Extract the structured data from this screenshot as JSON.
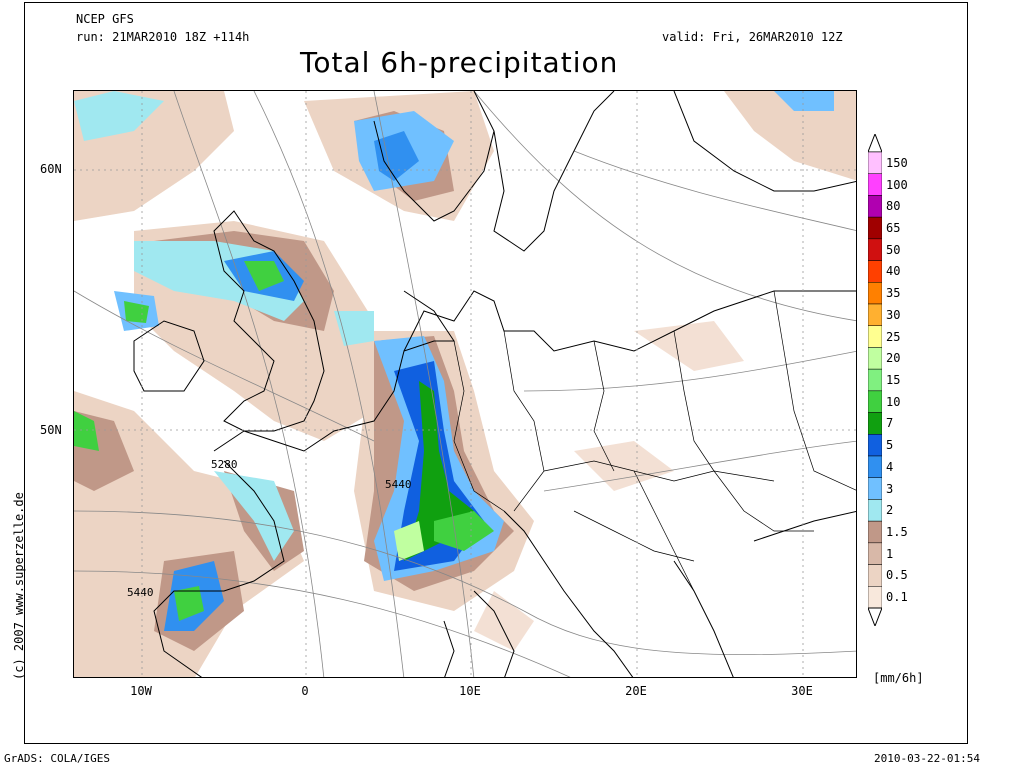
{
  "header": {
    "model": "NCEP GFS",
    "run": "run: 21MAR2010 18Z +114h",
    "valid": "valid: Fri, 26MAR2010 12Z",
    "title": "Total 6h-precipitation"
  },
  "axes": {
    "x_ticks": [
      "10W",
      "0",
      "10E",
      "20E",
      "30E"
    ],
    "y_ticks": [
      "60N",
      "50N"
    ]
  },
  "contour_labels": [
    "5280",
    "5440",
    "5440"
  ],
  "credit": "(c) 2007 www.superzelle.de",
  "colorbar": {
    "unit": "[mm/6h]",
    "levels": [
      "150",
      "100",
      "80",
      "65",
      "50",
      "40",
      "35",
      "30",
      "25",
      "20",
      "15",
      "10",
      "7",
      "5",
      "4",
      "3",
      "2",
      "1.5",
      "1",
      "0.5",
      "0.1"
    ],
    "colors": [
      "#ffc0ff",
      "#ff40ff",
      "#b000b0",
      "#a00000",
      "#d01010",
      "#ff4000",
      "#ff8000",
      "#ffb030",
      "#ffff90",
      "#c0ffa0",
      "#80f080",
      "#40d040",
      "#10a010",
      "#1060e0",
      "#3090f0",
      "#70c0ff",
      "#a0e8f0",
      "#c09888",
      "#d8b8a8",
      "#ecd4c4",
      "#f8e8dc"
    ]
  },
  "footer": {
    "left": "GrADS: COLA/IGES",
    "right": "2010-03-22-01:54"
  }
}
